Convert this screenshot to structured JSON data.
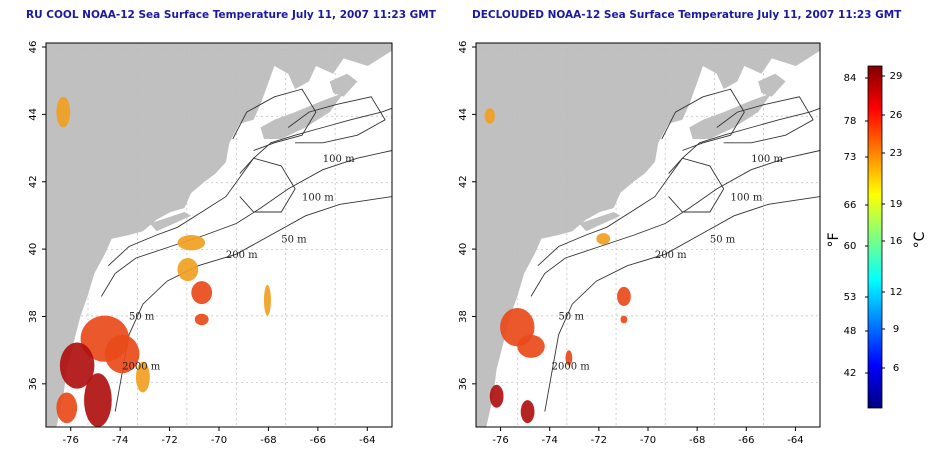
{
  "maps": [
    {
      "title": "RU COOL NOAA-12 Sea Surface Temperature July 11, 2007 11:23 GMT",
      "contour_labels": [
        "100 m",
        "100 m",
        "50 m",
        "200 m",
        "50 m",
        "2000 m"
      ]
    },
    {
      "title": "DECLOUDED NOAA-12 Sea Surface Temperature July 11, 2007 11:23 GMT",
      "contour_labels": [
        "100 m",
        "100 m",
        "50 m",
        "200 m",
        "50 m",
        "2000 m"
      ]
    }
  ],
  "axes": {
    "lon_ticks": [
      "-76",
      "-74",
      "-72",
      "-70",
      "-68",
      "-66",
      "-64"
    ],
    "lat_ticks": [
      "46",
      "44",
      "42",
      "40",
      "38",
      "36"
    ]
  },
  "colorbar": {
    "fahrenheit_label": "°F",
    "celsius_label": "°C",
    "fahrenheit_ticks": [
      "84",
      "78",
      "73",
      "66",
      "60",
      "53",
      "48",
      "42"
    ],
    "celsius_ticks": [
      "29",
      "26",
      "23",
      "19",
      "16",
      "12",
      "9",
      "6"
    ]
  },
  "colors": {
    "land": "#c0c0c0",
    "ocean": "#ffffff",
    "contour": "#333333",
    "title": "#1a1aa0",
    "sst_warm": "#e84a1a",
    "sst_hot": "#b01010",
    "sst_mid": "#f0a020",
    "colorbar_stops": [
      "#00007f",
      "#0000ff",
      "#0080ff",
      "#00ffff",
      "#80ff80",
      "#ffff00",
      "#ff8000",
      "#ff0000",
      "#7f0000"
    ]
  }
}
